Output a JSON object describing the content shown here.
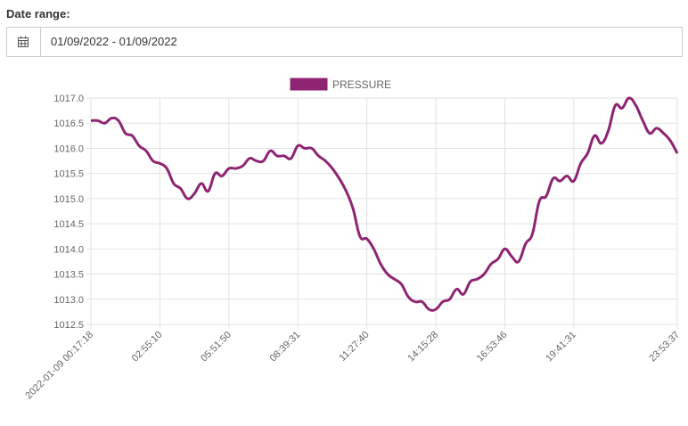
{
  "form": {
    "label": "Date range:",
    "value": "01/09/2022 - 01/09/2022"
  },
  "chart_data": {
    "type": "line",
    "categories": [
      "2022-01-09 00:17:18",
      null,
      null,
      null,
      null,
      null,
      null,
      null,
      null,
      null,
      "02:55:10",
      null,
      null,
      null,
      null,
      null,
      null,
      null,
      null,
      null,
      "05:51:50",
      null,
      null,
      null,
      null,
      null,
      null,
      null,
      null,
      null,
      "08:39:31",
      null,
      null,
      null,
      null,
      null,
      null,
      null,
      null,
      null,
      "11:27:40",
      null,
      null,
      null,
      null,
      null,
      null,
      null,
      null,
      null,
      "14:15:28",
      null,
      null,
      null,
      null,
      null,
      null,
      null,
      null,
      null,
      "16:53:46",
      null,
      null,
      null,
      null,
      null,
      null,
      null,
      null,
      null,
      "19:41:31",
      null,
      null,
      null,
      null,
      null,
      null,
      null,
      null,
      null,
      null,
      null,
      null,
      null,
      null,
      "23:53:37"
    ],
    "series": [
      {
        "name": "PRESSURE",
        "color": "#8e2472",
        "values": [
          1016.55,
          1016.55,
          1016.5,
          1016.6,
          1016.55,
          1016.3,
          1016.25,
          1016.05,
          1015.95,
          1015.75,
          1015.7,
          1015.6,
          1015.3,
          1015.2,
          1015.0,
          1015.1,
          1015.3,
          1015.15,
          1015.5,
          1015.45,
          1015.6,
          1015.6,
          1015.65,
          1015.8,
          1015.75,
          1015.75,
          1015.95,
          1015.85,
          1015.85,
          1015.8,
          1016.05,
          1016.0,
          1016.0,
          1015.85,
          1015.75,
          1015.6,
          1015.4,
          1015.15,
          1014.8,
          1014.25,
          1014.2,
          1014.0,
          1013.7,
          1013.5,
          1013.4,
          1013.3,
          1013.05,
          1012.95,
          1012.95,
          1012.8,
          1012.8,
          1012.95,
          1013.0,
          1013.2,
          1013.1,
          1013.35,
          1013.4,
          1013.5,
          1013.7,
          1013.8,
          1014.0,
          1013.85,
          1013.75,
          1014.1,
          1014.3,
          1014.95,
          1015.05,
          1015.4,
          1015.35,
          1015.45,
          1015.35,
          1015.7,
          1015.9,
          1016.25,
          1016.1,
          1016.35,
          1016.85,
          1016.8,
          1017.0,
          1016.85,
          1016.55,
          1016.3,
          1016.4,
          1016.3,
          1016.15,
          1015.9
        ]
      }
    ],
    "ylim": [
      1012.5,
      1017.0
    ],
    "yticks": [
      1012.5,
      {
        "value": 1013,
        "label": "1013.0"
      },
      1013.5,
      {
        "value": 1014,
        "label": "1014.0"
      },
      1014.5,
      {
        "value": 1015,
        "label": "1015.0"
      },
      1015.5,
      {
        "value": 1016,
        "label": "1016.0"
      },
      1016.5,
      {
        "value": 1017,
        "label": "1017.0"
      }
    ],
    "grid": true
  }
}
